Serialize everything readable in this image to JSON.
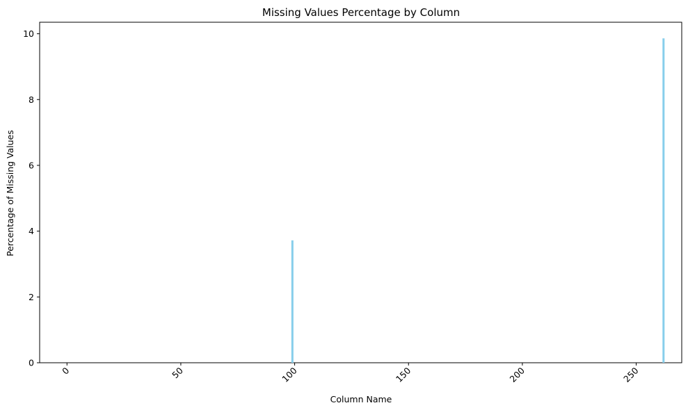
{
  "chart_data": {
    "type": "bar",
    "title": "Missing Values Percentage by Column",
    "xlabel": "Column Name",
    "ylabel": "Percentage of Missing Values",
    "xlim": [
      -12,
      270
    ],
    "ylim": [
      0,
      10.35
    ],
    "xticks": [
      0,
      50,
      100,
      150,
      200,
      250
    ],
    "yticks": [
      0,
      2,
      4,
      6,
      8,
      10
    ],
    "bar_color": "#87CEEB",
    "grid": false,
    "legend": "none",
    "bars": [
      {
        "x": 99,
        "value": 3.72
      },
      {
        "x": 262,
        "value": 9.86
      }
    ]
  }
}
